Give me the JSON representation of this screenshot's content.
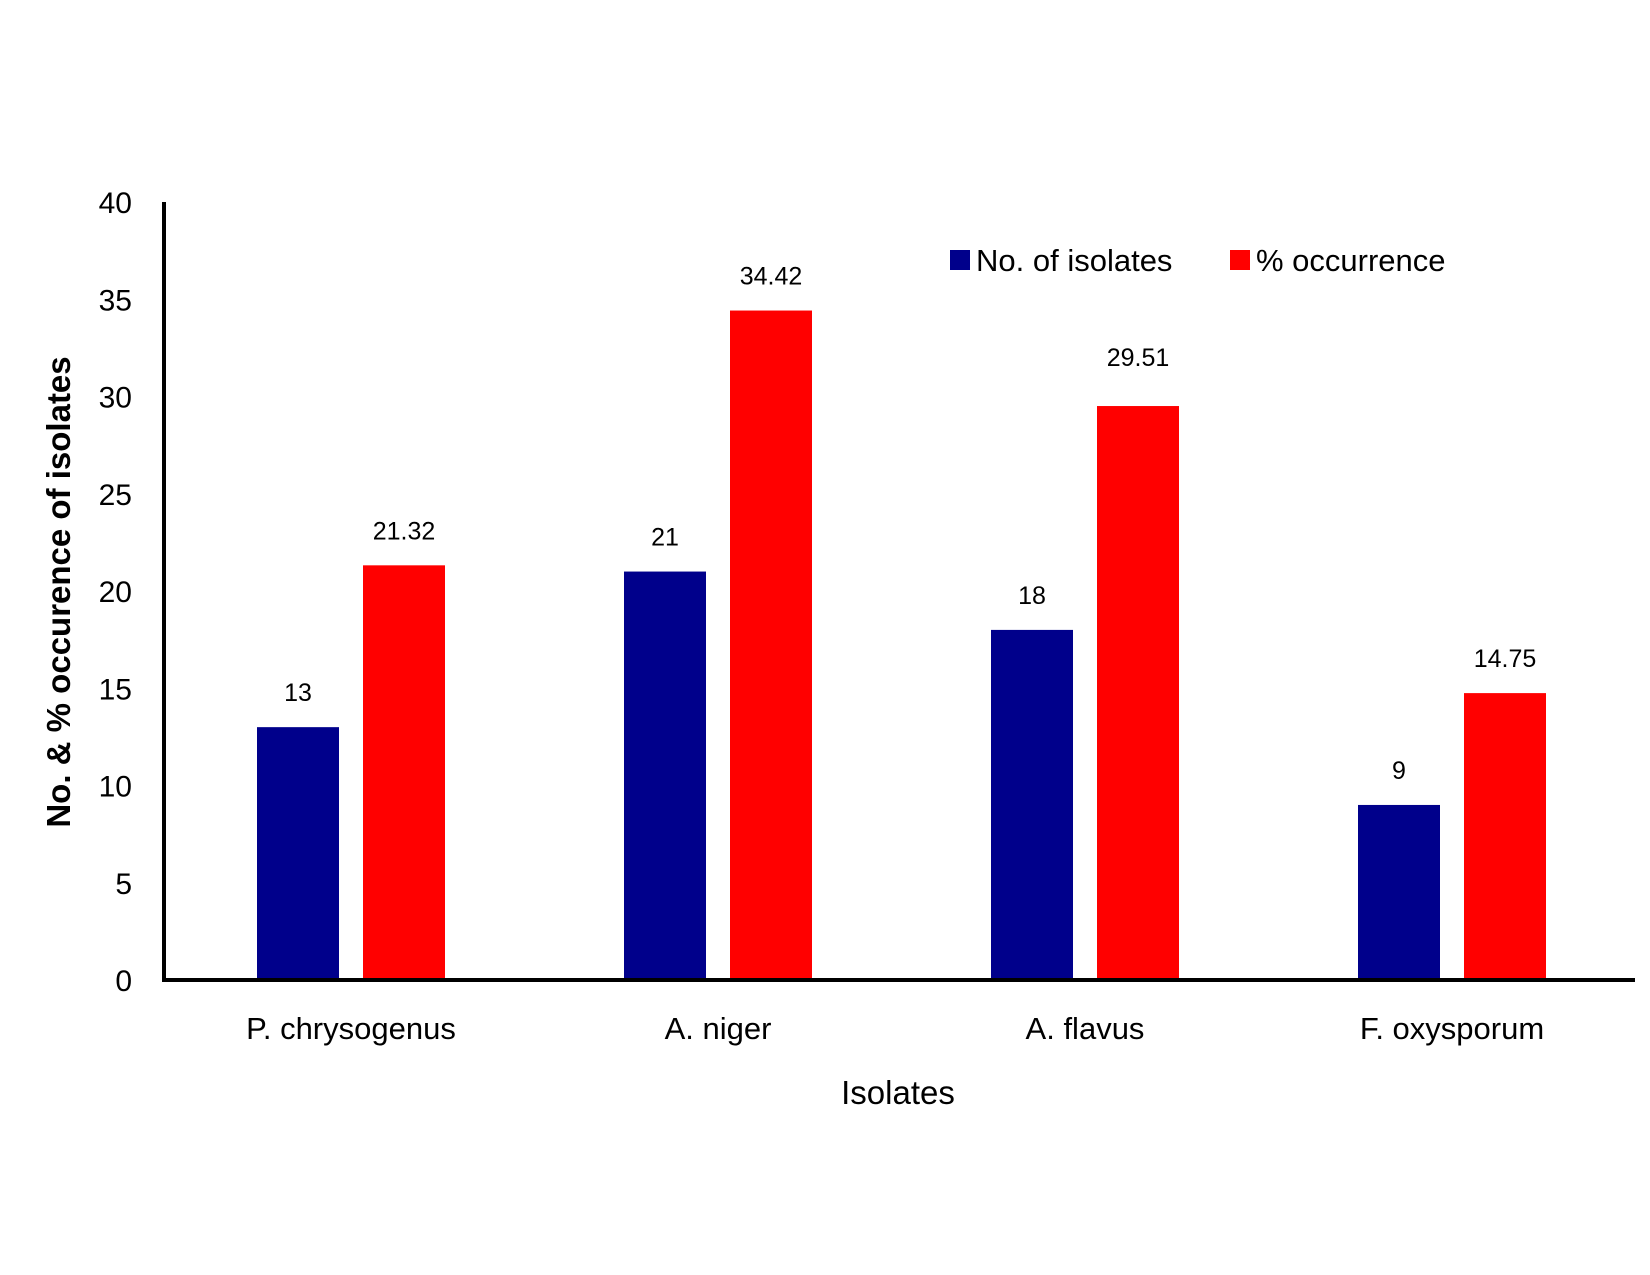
{
  "chart_data": {
    "type": "bar",
    "categories": [
      "P. chrysogenus",
      "A. niger",
      "A. flavus",
      "F. oxysporum"
    ],
    "series": [
      {
        "name": "No. of isolates",
        "color": "#00008b",
        "values": [
          13,
          21,
          18,
          9
        ],
        "labels": [
          "13",
          "21",
          "18",
          "9"
        ]
      },
      {
        "name": "% occurrence",
        "color": "#ff0000",
        "values": [
          21.32,
          34.42,
          29.51,
          14.75
        ],
        "labels": [
          "21.32",
          "34.42",
          "29.51",
          "14.75"
        ]
      }
    ],
    "title": "",
    "xlabel": "Isolates",
    "ylabel": "No. & % occurence of isolates",
    "ylim": [
      0,
      40
    ],
    "yticks": [
      0,
      5,
      10,
      15,
      20,
      25,
      30,
      35,
      40
    ],
    "grid": false,
    "legend_position": "top-right"
  }
}
